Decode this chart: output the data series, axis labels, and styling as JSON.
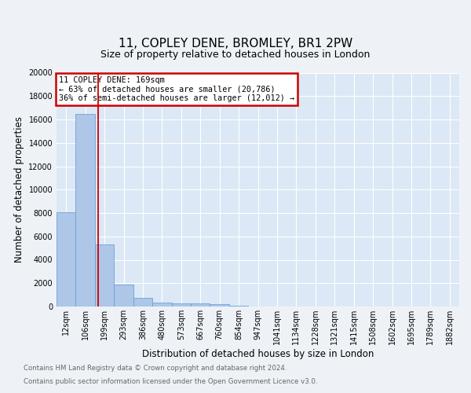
{
  "title1": "11, COPLEY DENE, BROMLEY, BR1 2PW",
  "title2": "Size of property relative to detached houses in London",
  "xlabel": "Distribution of detached houses by size in London",
  "ylabel": "Number of detached properties",
  "bin_labels": [
    "12sqm",
    "106sqm",
    "199sqm",
    "293sqm",
    "386sqm",
    "480sqm",
    "573sqm",
    "667sqm",
    "760sqm",
    "854sqm",
    "947sqm",
    "1041sqm",
    "1134sqm",
    "1228sqm",
    "1321sqm",
    "1415sqm",
    "1508sqm",
    "1602sqm",
    "1695sqm",
    "1789sqm",
    "1882sqm"
  ],
  "bar_heights": [
    8050,
    16500,
    5300,
    1850,
    750,
    350,
    250,
    250,
    200,
    50,
    0,
    0,
    0,
    0,
    0,
    0,
    0,
    0,
    0,
    0,
    0
  ],
  "bar_color": "#aec6e8",
  "bar_edge_color": "#5b9bd5",
  "red_line_color": "#cc0000",
  "red_line_x": 1.68,
  "annotation_title": "11 COPLEY DENE: 169sqm",
  "annotation_line1": "← 63% of detached houses are smaller (20,786)",
  "annotation_line2": "36% of semi-detached houses are larger (12,012) →",
  "annotation_box_color": "#cc0000",
  "ylim": [
    0,
    20000
  ],
  "yticks": [
    0,
    2000,
    4000,
    6000,
    8000,
    10000,
    12000,
    14000,
    16000,
    18000,
    20000
  ],
  "background_color": "#dce8f5",
  "fig_background_color": "#eef2f7",
  "grid_color": "#ffffff",
  "title_fontsize": 11,
  "subtitle_fontsize": 9,
  "tick_fontsize": 7,
  "ylabel_fontsize": 8.5,
  "xlabel_fontsize": 8.5,
  "footnote1": "Contains HM Land Registry data © Crown copyright and database right 2024.",
  "footnote2": "Contains public sector information licensed under the Open Government Licence v3.0.",
  "footnote_color": "#666666",
  "footnote_fontsize": 6.2
}
